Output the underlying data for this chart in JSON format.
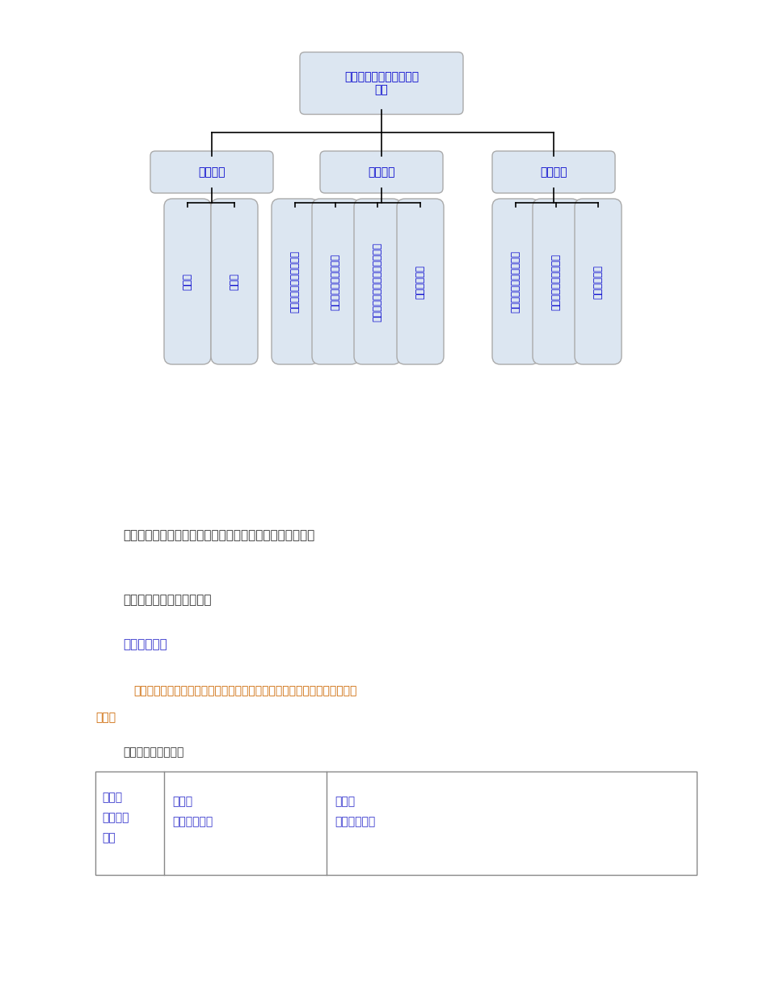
{
  "bg_color": "#ffffff",
  "node_fill": "#dce6f1",
  "node_edge": "#aaaaaa",
  "text_color": "#0000cc",
  "line_color": "#000000",
  "root_text": "成果转化为技术标准潜力\n分析",
  "level1": [
    "技术水平",
    "经济效益",
    "社会效益"
  ],
  "level2": [
    [
      "成熟性",
      "先进性"
    ],
    [
      "成果与市场对接的有效性",
      "成果推广后的主要作用",
      "成果转化为技术标准的主要作用",
      "预期经济效益"
    ],
    [
      "对社会可持续发展的作用",
      "对保障国家安全的作用",
      "预期社会效益"
    ]
  ],
  "caption": "国家科技计划成果转化为技术标准评价指标总体系（框架）",
  "caption_color": "#333333",
  "caption_underline": "国家科技计划",
  "section1": "各领域评价指标体系及解释",
  "section1_color": "#333333",
  "section2": "评价指标体系",
  "section2_color": "#3333cc",
  "subtitle_line1": "（适用于评价装备制造业、信息产业化、新材料、生物技术领域的科技成果",
  "subtitle_line2": "项目）",
  "subtitle_color": "#cc6600",
  "table_title": "表一：评价指标体系",
  "table_title_color": "#333333",
  "table_col1_line1": "准则层",
  "table_col1_line2": "（评价因素",
  "table_col1_line3": "素）",
  "table_col2_line1": "要素层",
  "table_col2_line2": "（评价要素）",
  "table_col3_line1": "指标层",
  "table_col3_line2": "（评价指标）",
  "table_text_color": "#3333cc",
  "table_border_color": "#888888"
}
